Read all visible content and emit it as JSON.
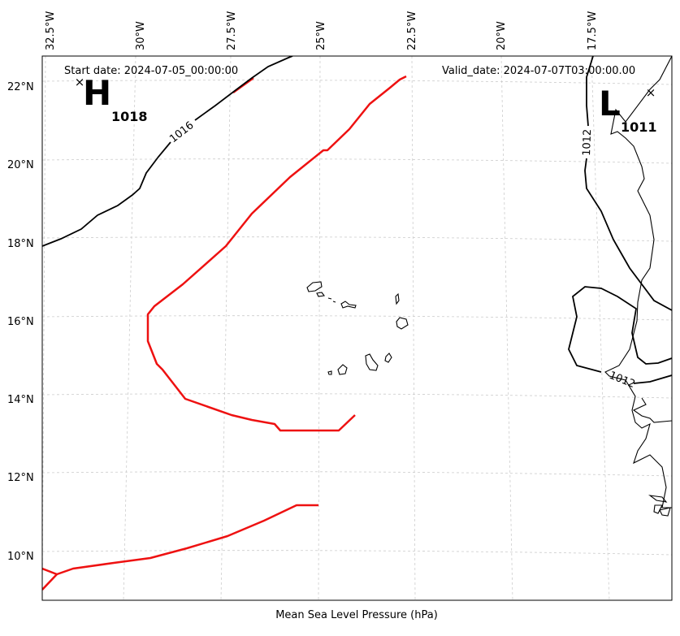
{
  "header": {
    "start_date": "Start date: 2024-07-05_00:00:00",
    "valid_date": "Valid_date: 2024-07-07T03:00:00.00"
  },
  "footer": {
    "title": "Mean Sea Level Pressure (hPa)"
  },
  "axes": {
    "longitudes": [
      "32.5°W",
      "30°W",
      "27.5°W",
      "25°W",
      "22.5°W",
      "20°W",
      "17.5°W"
    ],
    "latitudes": [
      "22°N",
      "20°N",
      "18°N",
      "16°N",
      "14°N",
      "12°N",
      "10°N"
    ]
  },
  "pressure_centers": [
    {
      "letter": "H",
      "value": "1018"
    },
    {
      "letter": "L",
      "value": "1011"
    }
  ],
  "contour_labels": [
    "1016",
    "1012",
    "1012"
  ],
  "colors": {
    "contour": "#000000",
    "track": "#ee1111",
    "grid": "#cccccc",
    "coast": "#000000"
  }
}
